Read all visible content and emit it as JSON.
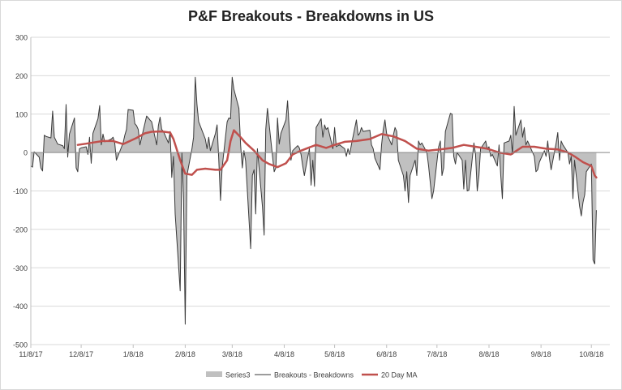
{
  "chart_data": {
    "type": "area",
    "title": "P&F Breakouts - Breakdowns in US",
    "xlabel": "",
    "ylabel": "",
    "ylim": [
      -500,
      300
    ],
    "yticks": [
      300,
      200,
      100,
      0,
      -100,
      -200,
      -300,
      -400,
      -500
    ],
    "xlim": [
      "2017-11-08",
      "2018-10-19"
    ],
    "xticks": [
      "11/8/17",
      "12/8/17",
      "1/8/18",
      "2/8/18",
      "3/8/18",
      "4/8/18",
      "5/8/18",
      "6/8/18",
      "7/8/18",
      "8/8/18",
      "9/8/18",
      "10/8/18"
    ],
    "grid": "horizontal",
    "legend_position": "bottom",
    "colors": {
      "area": "#c0c0c0",
      "line": "#3a3a3a",
      "ma": "#c0504d",
      "grid": "#d9d9d9"
    },
    "series": [
      {
        "name": "Series3",
        "type": "area"
      },
      {
        "name": "Breakouts - Breakdowns",
        "type": "line"
      },
      {
        "name": "20 Day MA",
        "type": "line"
      }
    ],
    "breakouts_breakdowns": [
      [
        "2017-11-08",
        -35
      ],
      [
        "2017-11-09",
        -38
      ],
      [
        "2017-11-10",
        2
      ],
      [
        "2017-11-13",
        -12
      ],
      [
        "2017-11-14",
        -40
      ],
      [
        "2017-11-15",
        -48
      ],
      [
        "2017-11-16",
        45
      ],
      [
        "2017-11-17",
        42
      ],
      [
        "2017-11-20",
        38
      ],
      [
        "2017-11-21",
        108
      ],
      [
        "2017-11-22",
        40
      ],
      [
        "2017-11-24",
        22
      ],
      [
        "2017-11-27",
        18
      ],
      [
        "2017-11-28",
        10
      ],
      [
        "2017-11-29",
        125
      ],
      [
        "2017-11-30",
        -12
      ],
      [
        "2017-12-01",
        48
      ],
      [
        "2017-12-04",
        90
      ],
      [
        "2017-12-05",
        -40
      ],
      [
        "2017-12-06",
        -50
      ],
      [
        "2017-12-07",
        10
      ],
      [
        "2017-12-08",
        12
      ],
      [
        "2017-12-11",
        15
      ],
      [
        "2017-12-12",
        -5
      ],
      [
        "2017-12-13",
        40
      ],
      [
        "2017-12-14",
        -28
      ],
      [
        "2017-12-15",
        50
      ],
      [
        "2017-12-18",
        88
      ],
      [
        "2017-12-19",
        122
      ],
      [
        "2017-12-20",
        20
      ],
      [
        "2017-12-21",
        48
      ],
      [
        "2017-12-22",
        28
      ],
      [
        "2017-12-26",
        35
      ],
      [
        "2017-12-27",
        40
      ],
      [
        "2017-12-28",
        25
      ],
      [
        "2017-12-29",
        -20
      ],
      [
        "2018-01-02",
        25
      ],
      [
        "2018-01-03",
        45
      ],
      [
        "2018-01-04",
        60
      ],
      [
        "2018-01-05",
        112
      ],
      [
        "2018-01-08",
        110
      ],
      [
        "2018-01-09",
        75
      ],
      [
        "2018-01-10",
        70
      ],
      [
        "2018-01-11",
        60
      ],
      [
        "2018-01-12",
        20
      ],
      [
        "2018-01-16",
        95
      ],
      [
        "2018-01-17",
        90
      ],
      [
        "2018-01-18",
        85
      ],
      [
        "2018-01-19",
        80
      ],
      [
        "2018-01-22",
        20
      ],
      [
        "2018-01-23",
        70
      ],
      [
        "2018-01-24",
        92
      ],
      [
        "2018-01-25",
        60
      ],
      [
        "2018-01-26",
        55
      ],
      [
        "2018-01-29",
        25
      ],
      [
        "2018-01-30",
        55
      ],
      [
        "2018-01-31",
        -65
      ],
      [
        "2018-02-01",
        -10
      ],
      [
        "2018-02-02",
        -160
      ],
      [
        "2018-02-05",
        -360
      ],
      [
        "2018-02-06",
        0
      ],
      [
        "2018-02-07",
        -120
      ],
      [
        "2018-02-08",
        -447
      ],
      [
        "2018-02-09",
        -60
      ],
      [
        "2018-02-12",
        10
      ],
      [
        "2018-02-13",
        40
      ],
      [
        "2018-02-14",
        196
      ],
      [
        "2018-02-15",
        125
      ],
      [
        "2018-02-16",
        80
      ],
      [
        "2018-02-20",
        35
      ],
      [
        "2018-02-21",
        10
      ],
      [
        "2018-02-22",
        40
      ],
      [
        "2018-02-23",
        5
      ],
      [
        "2018-02-26",
        50
      ],
      [
        "2018-02-27",
        72
      ],
      [
        "2018-02-28",
        -20
      ],
      [
        "2018-03-01",
        -125
      ],
      [
        "2018-03-02",
        -40
      ],
      [
        "2018-03-05",
        80
      ],
      [
        "2018-03-06",
        90
      ],
      [
        "2018-03-07",
        88
      ],
      [
        "2018-03-08",
        196
      ],
      [
        "2018-03-09",
        165
      ],
      [
        "2018-03-12",
        115
      ],
      [
        "2018-03-13",
        20
      ],
      [
        "2018-03-14",
        -40
      ],
      [
        "2018-03-15",
        5
      ],
      [
        "2018-03-16",
        -22
      ],
      [
        "2018-03-19",
        -250
      ],
      [
        "2018-03-20",
        -60
      ],
      [
        "2018-03-21",
        -45
      ],
      [
        "2018-03-22",
        -160
      ],
      [
        "2018-03-23",
        10
      ],
      [
        "2018-03-26",
        -140
      ],
      [
        "2018-03-27",
        -215
      ],
      [
        "2018-03-28",
        60
      ],
      [
        "2018-03-29",
        115
      ],
      [
        "2018-04-02",
        -50
      ],
      [
        "2018-04-03",
        -40
      ],
      [
        "2018-04-04",
        90
      ],
      [
        "2018-04-05",
        22
      ],
      [
        "2018-04-06",
        50
      ],
      [
        "2018-04-09",
        85
      ],
      [
        "2018-04-10",
        135
      ],
      [
        "2018-04-11",
        60
      ],
      [
        "2018-04-12",
        -20
      ],
      [
        "2018-04-13",
        5
      ],
      [
        "2018-04-16",
        18
      ],
      [
        "2018-04-17",
        12
      ],
      [
        "2018-04-18",
        -5
      ],
      [
        "2018-04-19",
        -35
      ],
      [
        "2018-04-20",
        -60
      ],
      [
        "2018-04-23",
        10
      ],
      [
        "2018-04-24",
        -85
      ],
      [
        "2018-04-25",
        -20
      ],
      [
        "2018-04-26",
        -88
      ],
      [
        "2018-04-27",
        65
      ],
      [
        "2018-04-30",
        88
      ],
      [
        "2018-05-01",
        40
      ],
      [
        "2018-05-02",
        72
      ],
      [
        "2018-05-03",
        60
      ],
      [
        "2018-05-04",
        65
      ],
      [
        "2018-05-07",
        10
      ],
      [
        "2018-05-08",
        65
      ],
      [
        "2018-05-09",
        15
      ],
      [
        "2018-05-10",
        18
      ],
      [
        "2018-05-11",
        20
      ],
      [
        "2018-05-14",
        10
      ],
      [
        "2018-05-15",
        -10
      ],
      [
        "2018-05-16",
        10
      ],
      [
        "2018-05-17",
        -5
      ],
      [
        "2018-05-18",
        20
      ],
      [
        "2018-05-21",
        85
      ],
      [
        "2018-05-22",
        45
      ],
      [
        "2018-05-23",
        50
      ],
      [
        "2018-05-24",
        65
      ],
      [
        "2018-05-25",
        55
      ],
      [
        "2018-05-29",
        58
      ],
      [
        "2018-05-30",
        20
      ],
      [
        "2018-05-31",
        10
      ],
      [
        "2018-06-01",
        -15
      ],
      [
        "2018-06-04",
        -45
      ],
      [
        "2018-06-05",
        20
      ],
      [
        "2018-06-06",
        60
      ],
      [
        "2018-06-07",
        85
      ],
      [
        "2018-06-08",
        50
      ],
      [
        "2018-06-11",
        20
      ],
      [
        "2018-06-12",
        45
      ],
      [
        "2018-06-13",
        65
      ],
      [
        "2018-06-14",
        55
      ],
      [
        "2018-06-15",
        -20
      ],
      [
        "2018-06-18",
        -60
      ],
      [
        "2018-06-19",
        -100
      ],
      [
        "2018-06-20",
        -50
      ],
      [
        "2018-06-21",
        -130
      ],
      [
        "2018-06-22",
        -60
      ],
      [
        "2018-06-25",
        -20
      ],
      [
        "2018-06-26",
        -60
      ],
      [
        "2018-06-27",
        30
      ],
      [
        "2018-06-28",
        20
      ],
      [
        "2018-06-29",
        25
      ],
      [
        "2018-07-02",
        0
      ],
      [
        "2018-07-03",
        -35
      ],
      [
        "2018-07-05",
        -120
      ],
      [
        "2018-07-06",
        -100
      ],
      [
        "2018-07-09",
        15
      ],
      [
        "2018-07-10",
        30
      ],
      [
        "2018-07-11",
        -60
      ],
      [
        "2018-07-12",
        -40
      ],
      [
        "2018-07-13",
        55
      ],
      [
        "2018-07-16",
        102
      ],
      [
        "2018-07-17",
        100
      ],
      [
        "2018-07-18",
        -10
      ],
      [
        "2018-07-19",
        -30
      ],
      [
        "2018-07-20",
        0
      ],
      [
        "2018-07-23",
        -20
      ],
      [
        "2018-07-24",
        -95
      ],
      [
        "2018-07-25",
        -20
      ],
      [
        "2018-07-26",
        -100
      ],
      [
        "2018-07-27",
        -98
      ],
      [
        "2018-07-30",
        25
      ],
      [
        "2018-07-31",
        -5
      ],
      [
        "2018-08-01",
        -100
      ],
      [
        "2018-08-02",
        -60
      ],
      [
        "2018-08-03",
        10
      ],
      [
        "2018-08-06",
        30
      ],
      [
        "2018-08-07",
        10
      ],
      [
        "2018-08-08",
        15
      ],
      [
        "2018-08-09",
        -10
      ],
      [
        "2018-08-10",
        -5
      ],
      [
        "2018-08-13",
        -35
      ],
      [
        "2018-08-14",
        20
      ],
      [
        "2018-08-15",
        -60
      ],
      [
        "2018-08-16",
        -120
      ],
      [
        "2018-08-17",
        25
      ],
      [
        "2018-08-20",
        30
      ],
      [
        "2018-08-21",
        45
      ],
      [
        "2018-08-22",
        -5
      ],
      [
        "2018-08-23",
        120
      ],
      [
        "2018-08-24",
        45
      ],
      [
        "2018-08-27",
        85
      ],
      [
        "2018-08-28",
        40
      ],
      [
        "2018-08-29",
        65
      ],
      [
        "2018-08-30",
        20
      ],
      [
        "2018-08-31",
        30
      ],
      [
        "2018-09-04",
        -10
      ],
      [
        "2018-09-05",
        -50
      ],
      [
        "2018-09-06",
        -45
      ],
      [
        "2018-09-07",
        -25
      ],
      [
        "2018-09-10",
        5
      ],
      [
        "2018-09-11",
        -10
      ],
      [
        "2018-09-12",
        30
      ],
      [
        "2018-09-13",
        -15
      ],
      [
        "2018-09-14",
        -45
      ],
      [
        "2018-09-17",
        25
      ],
      [
        "2018-09-18",
        52
      ],
      [
        "2018-09-19",
        -20
      ],
      [
        "2018-09-20",
        30
      ],
      [
        "2018-09-21",
        20
      ],
      [
        "2018-09-24",
        0
      ],
      [
        "2018-09-25",
        -30
      ],
      [
        "2018-09-26",
        -10
      ],
      [
        "2018-09-27",
        -120
      ],
      [
        "2018-09-28",
        -20
      ],
      [
        "2018-10-01",
        -140
      ],
      [
        "2018-10-02",
        -165
      ],
      [
        "2018-10-03",
        -130
      ],
      [
        "2018-10-04",
        -110
      ],
      [
        "2018-10-05",
        -50
      ],
      [
        "2018-10-08",
        -30
      ],
      [
        "2018-10-09",
        -280
      ],
      [
        "2018-10-10",
        -290
      ],
      [
        "2018-10-11",
        -150
      ]
    ],
    "ma_20day": [
      [
        "2017-12-06",
        20
      ],
      [
        "2017-12-11",
        23
      ],
      [
        "2017-12-15",
        26
      ],
      [
        "2017-12-21",
        30
      ],
      [
        "2017-12-27",
        30
      ],
      [
        "2018-01-02",
        22
      ],
      [
        "2018-01-10",
        38
      ],
      [
        "2018-01-15",
        50
      ],
      [
        "2018-01-19",
        54
      ],
      [
        "2018-01-25",
        55
      ],
      [
        "2018-01-30",
        52
      ],
      [
        "2018-02-01",
        35
      ],
      [
        "2018-02-05",
        -20
      ],
      [
        "2018-02-08",
        -55
      ],
      [
        "2018-02-12",
        -58
      ],
      [
        "2018-02-15",
        -45
      ],
      [
        "2018-02-20",
        -42
      ],
      [
        "2018-02-26",
        -45
      ],
      [
        "2018-03-01",
        -45
      ],
      [
        "2018-03-05",
        -20
      ],
      [
        "2018-03-07",
        30
      ],
      [
        "2018-03-09",
        58
      ],
      [
        "2018-03-13",
        40
      ],
      [
        "2018-03-16",
        25
      ],
      [
        "2018-03-21",
        5
      ],
      [
        "2018-03-26",
        -20
      ],
      [
        "2018-03-30",
        -30
      ],
      [
        "2018-04-04",
        -38
      ],
      [
        "2018-04-09",
        -28
      ],
      [
        "2018-04-13",
        -5
      ],
      [
        "2018-04-18",
        5
      ],
      [
        "2018-04-24",
        15
      ],
      [
        "2018-04-27",
        20
      ],
      [
        "2018-05-03",
        12
      ],
      [
        "2018-05-08",
        20
      ],
      [
        "2018-05-14",
        28
      ],
      [
        "2018-05-21",
        30
      ],
      [
        "2018-05-29",
        35
      ],
      [
        "2018-06-05",
        48
      ],
      [
        "2018-06-12",
        42
      ],
      [
        "2018-06-19",
        30
      ],
      [
        "2018-06-26",
        10
      ],
      [
        "2018-07-03",
        5
      ],
      [
        "2018-07-10",
        8
      ],
      [
        "2018-07-17",
        12
      ],
      [
        "2018-07-24",
        20
      ],
      [
        "2018-07-31",
        15
      ],
      [
        "2018-08-07",
        10
      ],
      [
        "2018-08-14",
        0
      ],
      [
        "2018-08-21",
        -5
      ],
      [
        "2018-08-28",
        15
      ],
      [
        "2018-09-04",
        15
      ],
      [
        "2018-09-11",
        10
      ],
      [
        "2018-09-18",
        8
      ],
      [
        "2018-09-24",
        0
      ],
      [
        "2018-09-28",
        -10
      ],
      [
        "2018-10-03",
        -25
      ],
      [
        "2018-10-08",
        -35
      ],
      [
        "2018-10-10",
        -60
      ],
      [
        "2018-10-11",
        -65
      ]
    ]
  }
}
